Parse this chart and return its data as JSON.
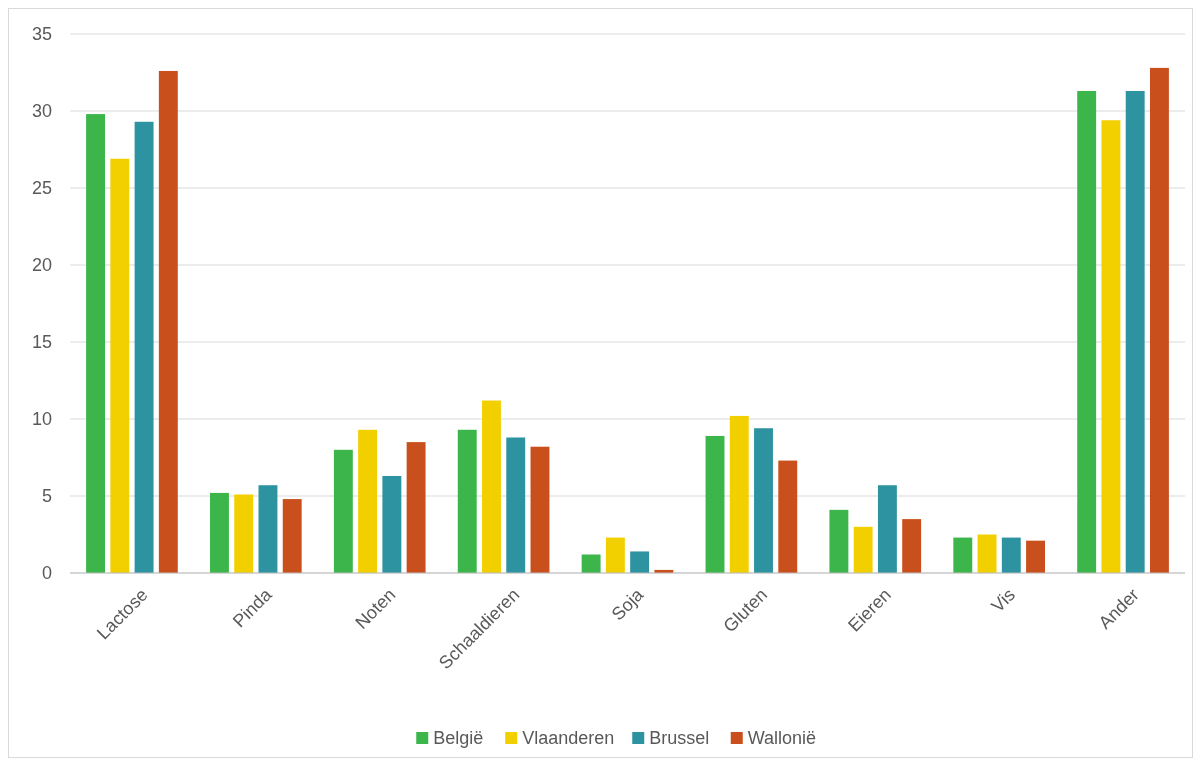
{
  "chart_data": {
    "type": "bar",
    "categories": [
      "Lactose",
      "Pinda",
      "Noten",
      "Schaaldieren",
      "Soja",
      "Gluten",
      "Eieren",
      "Vis",
      "Ander"
    ],
    "series": [
      {
        "name": "België",
        "color": "#3cb64a",
        "values": [
          29.8,
          5.2,
          8.0,
          9.3,
          1.2,
          8.9,
          4.1,
          2.3,
          31.3
        ]
      },
      {
        "name": "Vlaanderen",
        "color": "#f2d000",
        "values": [
          26.9,
          5.1,
          9.3,
          11.2,
          2.3,
          10.2,
          3.0,
          2.5,
          29.4
        ]
      },
      {
        "name": "Brussel",
        "color": "#2e93a0",
        "values": [
          29.3,
          5.7,
          6.3,
          8.8,
          1.4,
          9.4,
          5.7,
          2.3,
          31.3
        ]
      },
      {
        "name": "Wallonië",
        "color": "#c9501c",
        "values": [
          32.6,
          4.8,
          8.5,
          8.2,
          0.2,
          7.3,
          3.5,
          2.1,
          32.8
        ]
      }
    ],
    "ylim": [
      0,
      35
    ],
    "yticks": [
      0,
      5,
      10,
      15,
      20,
      25,
      30,
      35
    ],
    "grid": "y",
    "legend": "bottom"
  }
}
